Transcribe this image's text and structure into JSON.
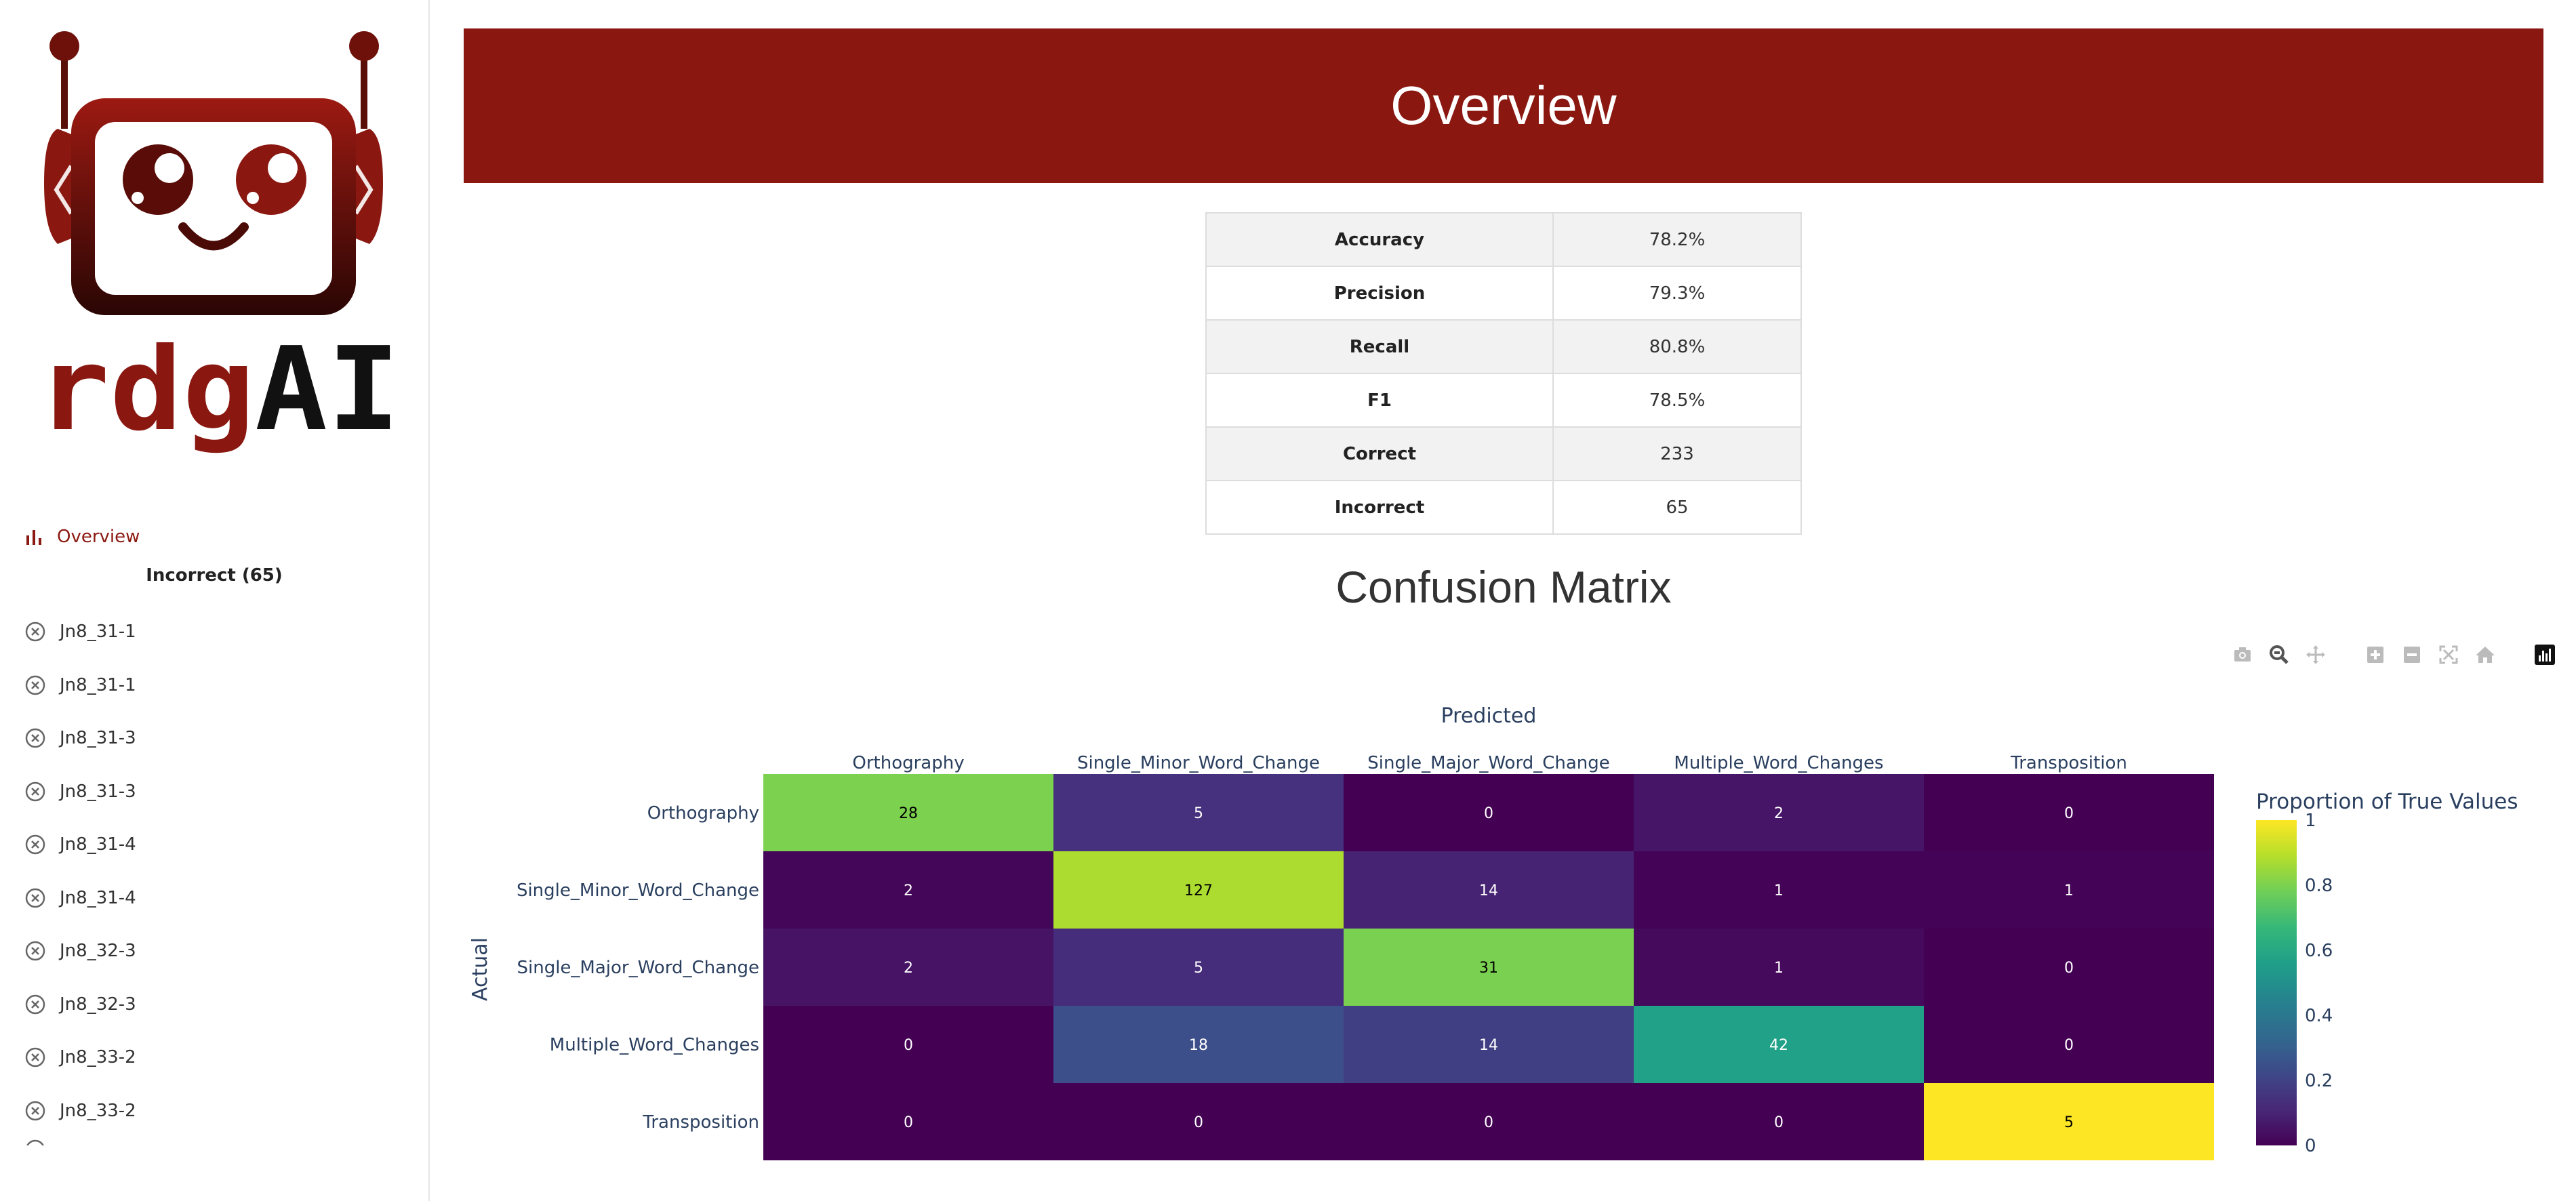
{
  "app": {
    "name_part1": "rdg",
    "name_part2": "AI"
  },
  "sidebar": {
    "overview_label": "Overview",
    "incorrect_heading": "Incorrect (65)",
    "items": [
      {
        "label": "Jn8_31-1"
      },
      {
        "label": "Jn8_31-1"
      },
      {
        "label": "Jn8_31-3"
      },
      {
        "label": "Jn8_31-3"
      },
      {
        "label": "Jn8_31-4"
      },
      {
        "label": "Jn8_31-4"
      },
      {
        "label": "Jn8_32-3"
      },
      {
        "label": "Jn8_32-3"
      },
      {
        "label": "Jn8_33-2"
      },
      {
        "label": "Jn8_33-2"
      }
    ]
  },
  "header": {
    "title": "Overview"
  },
  "metrics": [
    {
      "key": "Accuracy",
      "value": "78.2%"
    },
    {
      "key": "Precision",
      "value": "79.3%"
    },
    {
      "key": "Recall",
      "value": "80.8%"
    },
    {
      "key": "F1",
      "value": "78.5%"
    },
    {
      "key": "Correct",
      "value": "233"
    },
    {
      "key": "Incorrect",
      "value": "65"
    }
  ],
  "confusion": {
    "title": "Confusion Matrix"
  },
  "toolbar": {
    "icons": [
      "camera-icon",
      "zoom-icon",
      "pan-icon",
      "zoom-in-icon",
      "zoom-out-icon",
      "autoscale-icon",
      "reset-axes-icon",
      "plotly-logo-icon"
    ]
  },
  "colors": {
    "brand": "#8a1811",
    "nav_active": "#8b1a12"
  },
  "chart_data": {
    "type": "heatmap",
    "xlabel": "Predicted",
    "ylabel": "Actual",
    "categories": [
      "Orthography",
      "Single_Minor_Word_Change",
      "Single_Major_Word_Change",
      "Multiple_Word_Changes",
      "Transposition"
    ],
    "values": [
      [
        28,
        5,
        0,
        2,
        0
      ],
      [
        2,
        127,
        14,
        1,
        1
      ],
      [
        2,
        5,
        31,
        1,
        0
      ],
      [
        0,
        18,
        14,
        42,
        0
      ],
      [
        0,
        0,
        0,
        0,
        5
      ]
    ],
    "colorbar": {
      "title": "Proportion of True Values",
      "range": [
        0,
        1
      ],
      "ticks": [
        "0",
        "0.2",
        "0.4",
        "0.6",
        "0.8",
        "1"
      ]
    },
    "colorscale": "Viridis"
  }
}
